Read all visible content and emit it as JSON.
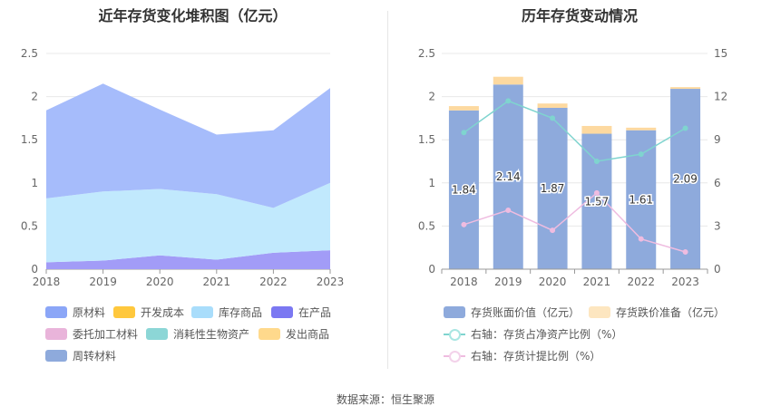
{
  "source_text": "数据来源：恒生聚源",
  "chart_data": [
    {
      "type": "area",
      "stacked": true,
      "title": "近年存货变化堆积图（亿元）",
      "x": [
        "2018",
        "2019",
        "2020",
        "2021",
        "2022",
        "2023"
      ],
      "ylim": [
        0,
        2.5
      ],
      "yticks": [
        "0",
        "0.5",
        "1",
        "1.5",
        "2",
        "2.5"
      ],
      "series": [
        {
          "name": "在产品",
          "color": "#a29cf7",
          "values": [
            0.08,
            0.1,
            0.16,
            0.11,
            0.19,
            0.22
          ]
        },
        {
          "name": "库存商品",
          "color": "#c1e9fd",
          "values": [
            0.74,
            0.8,
            0.77,
            0.76,
            0.52,
            0.78
          ]
        },
        {
          "name": "原材料",
          "color": "#a6bcfb",
          "values": [
            1.02,
            1.25,
            0.92,
            0.69,
            0.9,
            1.1
          ]
        }
      ],
      "legend": [
        {
          "name": "原材料",
          "color": "#8ba6f7"
        },
        {
          "name": "开发成本",
          "color": "#ffc83d"
        },
        {
          "name": "库存商品",
          "color": "#a9ddfb"
        },
        {
          "name": "在产品",
          "color": "#7b78f2"
        },
        {
          "name": "委托加工材料",
          "color": "#e9b4da"
        },
        {
          "name": "消耗性生物资产",
          "color": "#8cd6d6"
        },
        {
          "name": "发出商品",
          "color": "#ffd98c"
        },
        {
          "name": "周转材料",
          "color": "#8eaadc"
        }
      ]
    },
    {
      "type": "bar",
      "title": "历年存货变动情况",
      "categories": [
        "2018",
        "2019",
        "2020",
        "2021",
        "2022",
        "2023"
      ],
      "ylim": [
        0,
        2.5
      ],
      "yticks": [
        "0",
        "0.5",
        "1",
        "1.5",
        "2",
        "2.5"
      ],
      "y2lim": [
        0,
        15
      ],
      "y2ticks": [
        "0",
        "3",
        "6",
        "9",
        "12",
        "15"
      ],
      "series": [
        {
          "name": "存货账面价值（亿元）",
          "color": "#8eaadc",
          "values": [
            1.84,
            2.14,
            1.87,
            1.57,
            1.61,
            2.09
          ],
          "labels": [
            "1.84",
            "2.14",
            "1.87",
            "1.57",
            "1.61",
            "2.09"
          ]
        },
        {
          "name": "存货跌价准备（亿元）",
          "color": "#fdd9a0",
          "values": [
            0.05,
            0.09,
            0.05,
            0.09,
            0.03,
            0.02
          ]
        }
      ],
      "lines": [
        {
          "name": "右轴：存货占净资产比例（%）",
          "color": "#7fd4cf",
          "values": [
            9.5,
            11.7,
            10.5,
            7.5,
            8.0,
            9.8
          ]
        },
        {
          "name": "右轴：存货计提比例（%）",
          "color": "#efbce0",
          "values": [
            3.1,
            4.1,
            2.7,
            5.3,
            2.1,
            1.2
          ]
        }
      ]
    }
  ]
}
